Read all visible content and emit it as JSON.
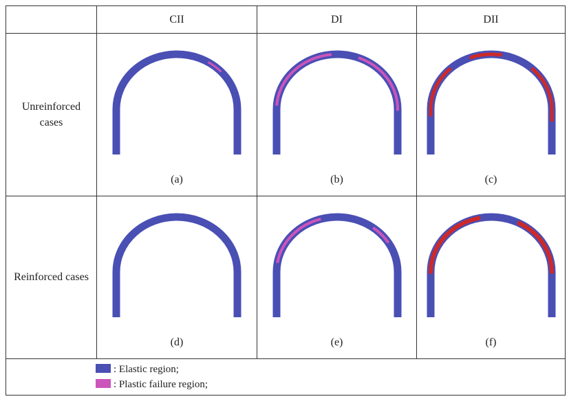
{
  "table": {
    "headers": [
      "CII",
      "DI",
      "DII"
    ],
    "rows": [
      {
        "label": "Unreinforced cases",
        "panels": [
          "(a)",
          "(b)",
          "(c)"
        ]
      },
      {
        "label": "Reinforced cases",
        "panels": [
          "(d)",
          "(e)",
          "(f)"
        ]
      }
    ]
  },
  "legend": {
    "items": [
      ": Elastic region;",
      ": Plastic failure region;"
    ]
  }
}
